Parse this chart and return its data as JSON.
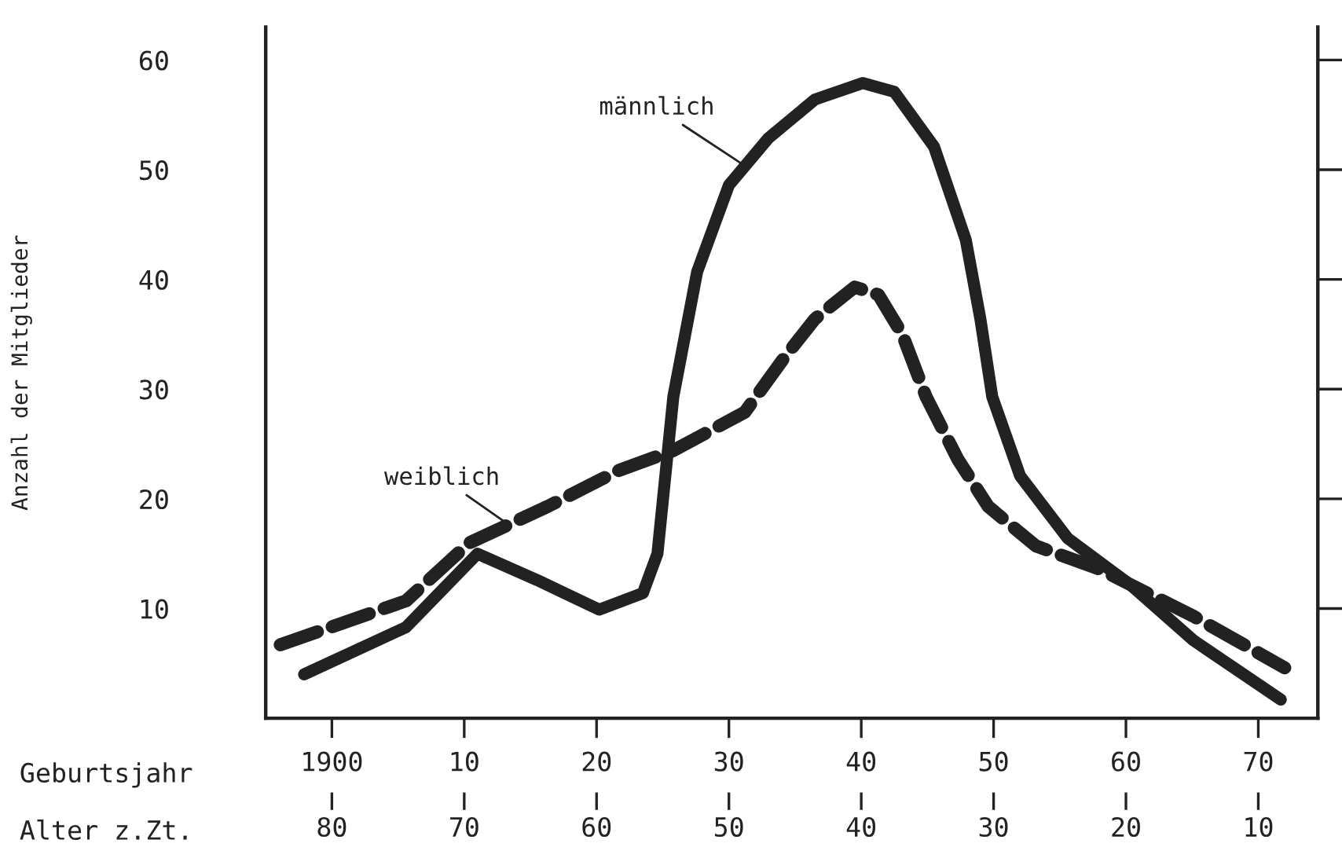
{
  "chart_data": {
    "type": "line",
    "ylabel": "Anzahl der Mitglieder",
    "xlabel": "Geburtsjahr",
    "x2label": "Alter z.Zt.",
    "xlim": [
      1895,
      1974.5
    ],
    "xticks": [
      1900,
      {
        "value": 1910,
        "label": "10"
      },
      {
        "value": 1920,
        "label": "20"
      },
      {
        "value": 1930,
        "label": "30"
      },
      {
        "value": 1940,
        "label": "40"
      },
      {
        "value": 1950,
        "label": "50"
      },
      {
        "value": 1960,
        "label": "60"
      },
      {
        "value": 1970,
        "label": "70"
      }
    ],
    "x2lim": [
      85,
      5.5
    ],
    "x2ticks": [
      80,
      70,
      60,
      50,
      40,
      30,
      20,
      10
    ],
    "ylim": [
      0,
      63
    ],
    "yticks": [
      10,
      20,
      30,
      40,
      50,
      60
    ],
    "grid": false,
    "legend": false,
    "marker": "none",
    "series": [
      {
        "name": "männlich",
        "color": "#222222",
        "line_style": "solid",
        "x": [
          1897.9,
          1905.6,
          1911,
          1915.5,
          1920.2,
          1923.5,
          1924.6,
          1925.8,
          1927.6,
          1930,
          1933,
          1936.5,
          1940.1,
          1942.5,
          1945.5,
          1947.9,
          1949,
          1949.9,
          1952,
          1955.6,
          1960.4,
          1965.1,
          1971.7
        ],
        "values": [
          4.0,
          8.3,
          15,
          12.6,
          9.9,
          11.4,
          15,
          29.3,
          40.7,
          48.6,
          52.9,
          56.4,
          57.9,
          57.1,
          52.1,
          43.6,
          36.4,
          29.3,
          22.1,
          16.4,
          12.1,
          7.1,
          1.7
        ]
      },
      {
        "name": "weiblich",
        "color": "#222222",
        "line_style": "dashed",
        "x": [
          1896.1,
          1905.6,
          1910.4,
          1916.3,
          1921.7,
          1925.8,
          1931.2,
          1934.2,
          1936.5,
          1939.5,
          1941.3,
          1943.1,
          1944.9,
          1947.3,
          1949.6,
          1953.2,
          1958,
          1965.1,
          1972
        ],
        "values": [
          6.7,
          10.7,
          16,
          19.3,
          22.6,
          24.4,
          27.9,
          32.9,
          36.4,
          39.3,
          38.6,
          35,
          29.3,
          23.6,
          19.3,
          15.7,
          13.6,
          9.3,
          4.6
        ]
      }
    ]
  }
}
